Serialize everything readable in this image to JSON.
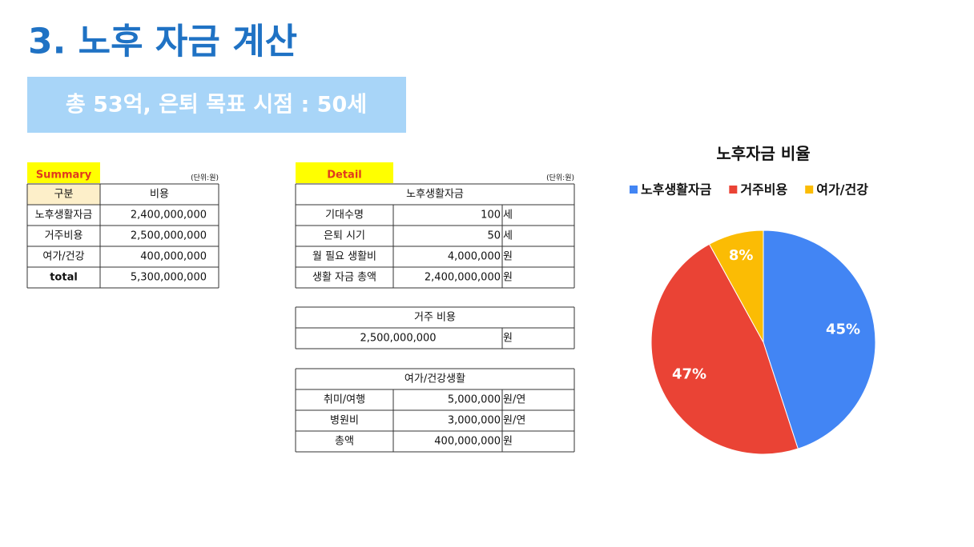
{
  "header": {
    "title": "3. 노후 자금 계산",
    "banner": "총 53억, 은퇴 목표 시점 : 50세"
  },
  "summary": {
    "label": "Summary",
    "unit": "(단위:원)",
    "columns": [
      "구분",
      "비용"
    ],
    "rows": [
      [
        "노후생활자금",
        "2,400,000,000"
      ],
      [
        "거주비용",
        "2,500,000,000"
      ],
      [
        "여가/건강",
        "400,000,000"
      ],
      [
        "total",
        "5,300,000,000"
      ]
    ]
  },
  "detail": {
    "label": "Detail",
    "unit": "(단위:원)",
    "sections": [
      {
        "title": "노후생활자금",
        "rows": [
          [
            "기대수명",
            "100",
            "세"
          ],
          [
            "은퇴 시기",
            "50",
            "세"
          ],
          [
            "월 필요 생활비",
            "4,000,000",
            "원"
          ],
          [
            "생활 자금 총액",
            "2,400,000,000",
            "원"
          ]
        ]
      },
      {
        "title": "거주 비용",
        "rows": [
          [
            "2,500,000,000",
            "원"
          ]
        ]
      },
      {
        "title": "여가/건강생활",
        "rows": [
          [
            "취미/여행",
            "5,000,000",
            "원/연"
          ],
          [
            "병원비",
            "3,000,000",
            "원/연"
          ],
          [
            "총액",
            "400,000,000",
            "원"
          ]
        ]
      }
    ]
  },
  "chart_data": {
    "type": "pie",
    "title": "노후자금 비율",
    "categories": [
      "노후생활자금",
      "거주비용",
      "여가/건강"
    ],
    "values": [
      45,
      47,
      8
    ],
    "value_labels": [
      "45%",
      "47%",
      "8%"
    ],
    "colors": [
      "#4285f4",
      "#ea4335",
      "#fbbc04"
    ],
    "legend": "top"
  }
}
